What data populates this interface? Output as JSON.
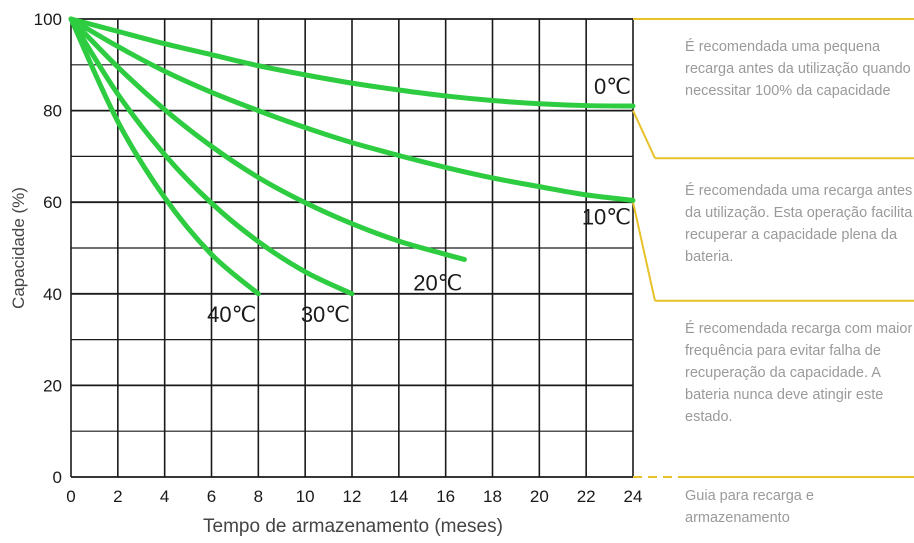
{
  "chart_data": {
    "type": "line",
    "xlabel": "Tempo de armazenamento (meses)",
    "ylabel": "Capacidade (%)",
    "xlim": [
      0,
      24
    ],
    "ylim": [
      0,
      100
    ],
    "x_ticks": [
      "0",
      "2",
      "4",
      "6",
      "8",
      "10",
      "12",
      "14",
      "16",
      "18",
      "20",
      "22",
      "24"
    ],
    "y_ticks": [
      "0",
      "20",
      "40",
      "60",
      "80",
      "100"
    ],
    "grid": true,
    "series": [
      {
        "name": "0℃",
        "x": [
          0,
          2,
          4,
          6,
          8,
          10,
          12,
          14,
          16,
          18,
          20,
          22,
          24
        ],
        "y": [
          100,
          97.3,
          94.6,
          92.2,
          89.8,
          87.8,
          86.0,
          84.5,
          83.2,
          82.2,
          81.5,
          81.1,
          81
        ]
      },
      {
        "name": "10℃",
        "x": [
          0,
          2,
          4,
          6,
          8,
          10,
          12,
          14,
          16,
          18,
          20,
          22,
          24
        ],
        "y": [
          100,
          94,
          88.6,
          84,
          80,
          76.3,
          73,
          70.2,
          67.6,
          65.3,
          63.4,
          61.6,
          60.4
        ]
      },
      {
        "name": "20℃",
        "x": [
          0,
          2,
          4,
          6,
          8,
          10,
          12,
          14,
          16,
          16.8
        ],
        "y": [
          100,
          89.5,
          80.2,
          72.2,
          65.4,
          59.9,
          55.3,
          51.5,
          48.6,
          47.5
        ]
      },
      {
        "name": "30℃",
        "x": [
          0,
          2,
          4,
          6,
          8,
          10,
          12
        ],
        "y": [
          100,
          83.6,
          70.4,
          59.8,
          51.4,
          44.8,
          40
        ]
      },
      {
        "name": "40℃",
        "x": [
          0,
          2,
          4,
          6,
          8
        ],
        "y": [
          100,
          77.6,
          61,
          48.6,
          40
        ]
      }
    ],
    "line_color": "#2ecc40",
    "grid_color": "#1a1a1a"
  },
  "guide": {
    "accent_color": "#e8c22a",
    "zones": [
      {
        "text": "É recomendada uma pequena recarga antes da utilização quando necessitar 100% da capacidade"
      },
      {
        "text": "É recomendada uma recarga antes da utilização. Esta operação facilita recuperar a capacidade plena da bateria."
      },
      {
        "text": "É recomendada recarga com maior frequência para evitar falha de recuperação da capacidade. A bateria nunca deve atingir este estado."
      },
      {
        "text": "Guia para recarga e armazenamento"
      }
    ]
  }
}
